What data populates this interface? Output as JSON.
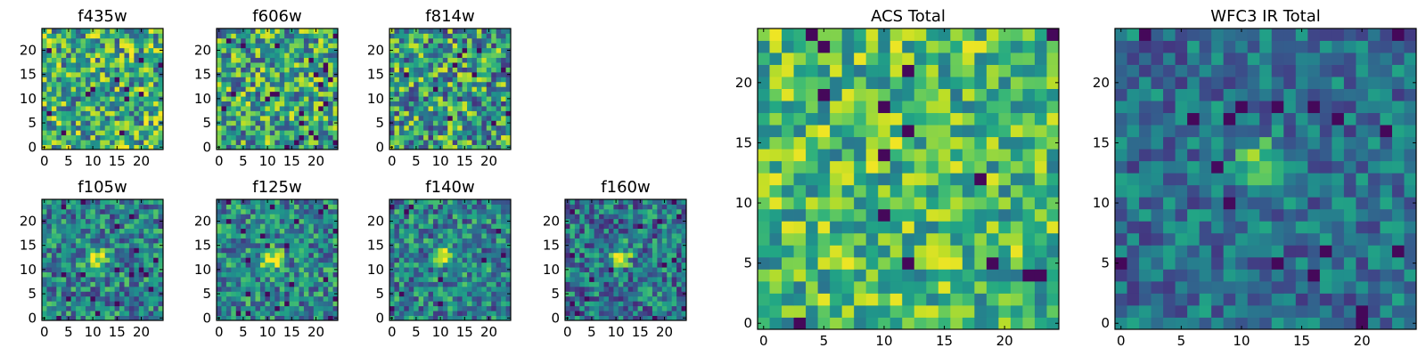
{
  "figure": {
    "panels": [
      {
        "id": "f435w",
        "title": "f435w",
        "size": "small",
        "cmap_range": [
          0.0,
          1.0
        ],
        "xticks": [
          "0",
          "5",
          "10",
          "15",
          "20"
        ],
        "yticks": [
          "0",
          "5",
          "10",
          "15",
          "20"
        ],
        "seed": 11,
        "blob": null,
        "base": 0.62,
        "spread": 0.38
      },
      {
        "id": "f606w",
        "title": "f606w",
        "size": "small",
        "cmap_range": [
          0.0,
          1.0
        ],
        "xticks": [
          "0",
          "5",
          "10",
          "15",
          "20"
        ],
        "yticks": [
          "0",
          "5",
          "10",
          "15",
          "20"
        ],
        "seed": 23,
        "blob": null,
        "base": 0.58,
        "spread": 0.38
      },
      {
        "id": "f814w",
        "title": "f814w",
        "size": "small",
        "cmap_range": [
          0.0,
          1.0
        ],
        "xticks": [
          "0",
          "5",
          "10",
          "15",
          "20"
        ],
        "yticks": [
          "0",
          "5",
          "10",
          "15",
          "20"
        ],
        "seed": 37,
        "blob": null,
        "base": 0.55,
        "spread": 0.4
      },
      {
        "id": "f105w",
        "title": "f105w",
        "size": "small",
        "cmap_range": [
          0.0,
          1.0
        ],
        "xticks": [
          "0",
          "5",
          "10",
          "15",
          "20"
        ],
        "yticks": [
          "0",
          "5",
          "10",
          "15",
          "20"
        ],
        "seed": 41,
        "blob": [
          11,
          12
        ],
        "base": 0.45,
        "spread": 0.3
      },
      {
        "id": "f125w",
        "title": "f125w",
        "size": "small",
        "cmap_range": [
          0.0,
          1.0
        ],
        "xticks": [
          "0",
          "5",
          "10",
          "15",
          "20"
        ],
        "yticks": [
          "0",
          "5",
          "10",
          "15",
          "20"
        ],
        "seed": 53,
        "blob": [
          11,
          12
        ],
        "base": 0.47,
        "spread": 0.3
      },
      {
        "id": "f140w",
        "title": "f140w",
        "size": "small",
        "cmap_range": [
          0.0,
          1.0
        ],
        "xticks": [
          "0",
          "5",
          "10",
          "15",
          "20"
        ],
        "yticks": [
          "0",
          "5",
          "10",
          "15",
          "20"
        ],
        "seed": 67,
        "blob": [
          11,
          13
        ],
        "base": 0.45,
        "spread": 0.3
      },
      {
        "id": "f160w",
        "title": "f160w",
        "size": "small",
        "cmap_range": [
          0.0,
          1.0
        ],
        "xticks": [
          "0",
          "5",
          "10",
          "15",
          "20"
        ],
        "yticks": [
          "0",
          "5",
          "10",
          "15",
          "20"
        ],
        "seed": 71,
        "blob": [
          11,
          13
        ],
        "base": 0.4,
        "spread": 0.3
      },
      {
        "id": "acs_total",
        "title": "ACS Total",
        "size": "large",
        "cmap_range": [
          0.0,
          1.0
        ],
        "xticks": [
          "0",
          "5",
          "10",
          "15",
          "20"
        ],
        "yticks": [
          "0",
          "5",
          "10",
          "15",
          "20"
        ],
        "seed": 83,
        "blob": null,
        "base": 0.68,
        "spread": 0.3
      },
      {
        "id": "wfc3_ir_total",
        "title": "WFC3 IR Total",
        "size": "large",
        "cmap_range": [
          0.0,
          1.0
        ],
        "xticks": [
          "0",
          "5",
          "10",
          "15",
          "20"
        ],
        "yticks": [
          "0",
          "5",
          "10",
          "15",
          "20"
        ],
        "seed": 97,
        "blob": [
          12,
          13
        ],
        "base": 0.38,
        "spread": 0.22
      }
    ]
  },
  "chart_data": [
    {
      "type": "heatmap",
      "title": "f435w",
      "grid": [
        25,
        25
      ],
      "xlim": [
        0,
        24
      ],
      "ylim": [
        0,
        24
      ],
      "colormap": "viridis"
    },
    {
      "type": "heatmap",
      "title": "f606w",
      "grid": [
        25,
        25
      ],
      "xlim": [
        0,
        24
      ],
      "ylim": [
        0,
        24
      ],
      "colormap": "viridis"
    },
    {
      "type": "heatmap",
      "title": "f814w",
      "grid": [
        25,
        25
      ],
      "xlim": [
        0,
        24
      ],
      "ylim": [
        0,
        24
      ],
      "colormap": "viridis"
    },
    {
      "type": "heatmap",
      "title": "f105w",
      "grid": [
        25,
        25
      ],
      "xlim": [
        0,
        24
      ],
      "ylim": [
        0,
        24
      ],
      "colormap": "viridis"
    },
    {
      "type": "heatmap",
      "title": "f125w",
      "grid": [
        25,
        25
      ],
      "xlim": [
        0,
        24
      ],
      "ylim": [
        0,
        24
      ],
      "colormap": "viridis"
    },
    {
      "type": "heatmap",
      "title": "f140w",
      "grid": [
        25,
        25
      ],
      "xlim": [
        0,
        24
      ],
      "ylim": [
        0,
        24
      ],
      "colormap": "viridis"
    },
    {
      "type": "heatmap",
      "title": "f160w",
      "grid": [
        25,
        25
      ],
      "xlim": [
        0,
        24
      ],
      "ylim": [
        0,
        24
      ],
      "colormap": "viridis"
    },
    {
      "type": "heatmap",
      "title": "ACS Total",
      "grid": [
        25,
        25
      ],
      "xlim": [
        0,
        24
      ],
      "ylim": [
        0,
        24
      ],
      "colormap": "viridis"
    },
    {
      "type": "heatmap",
      "title": "WFC3 IR Total",
      "grid": [
        25,
        25
      ],
      "xlim": [
        0,
        24
      ],
      "ylim": [
        0,
        24
      ],
      "colormap": "viridis"
    }
  ]
}
